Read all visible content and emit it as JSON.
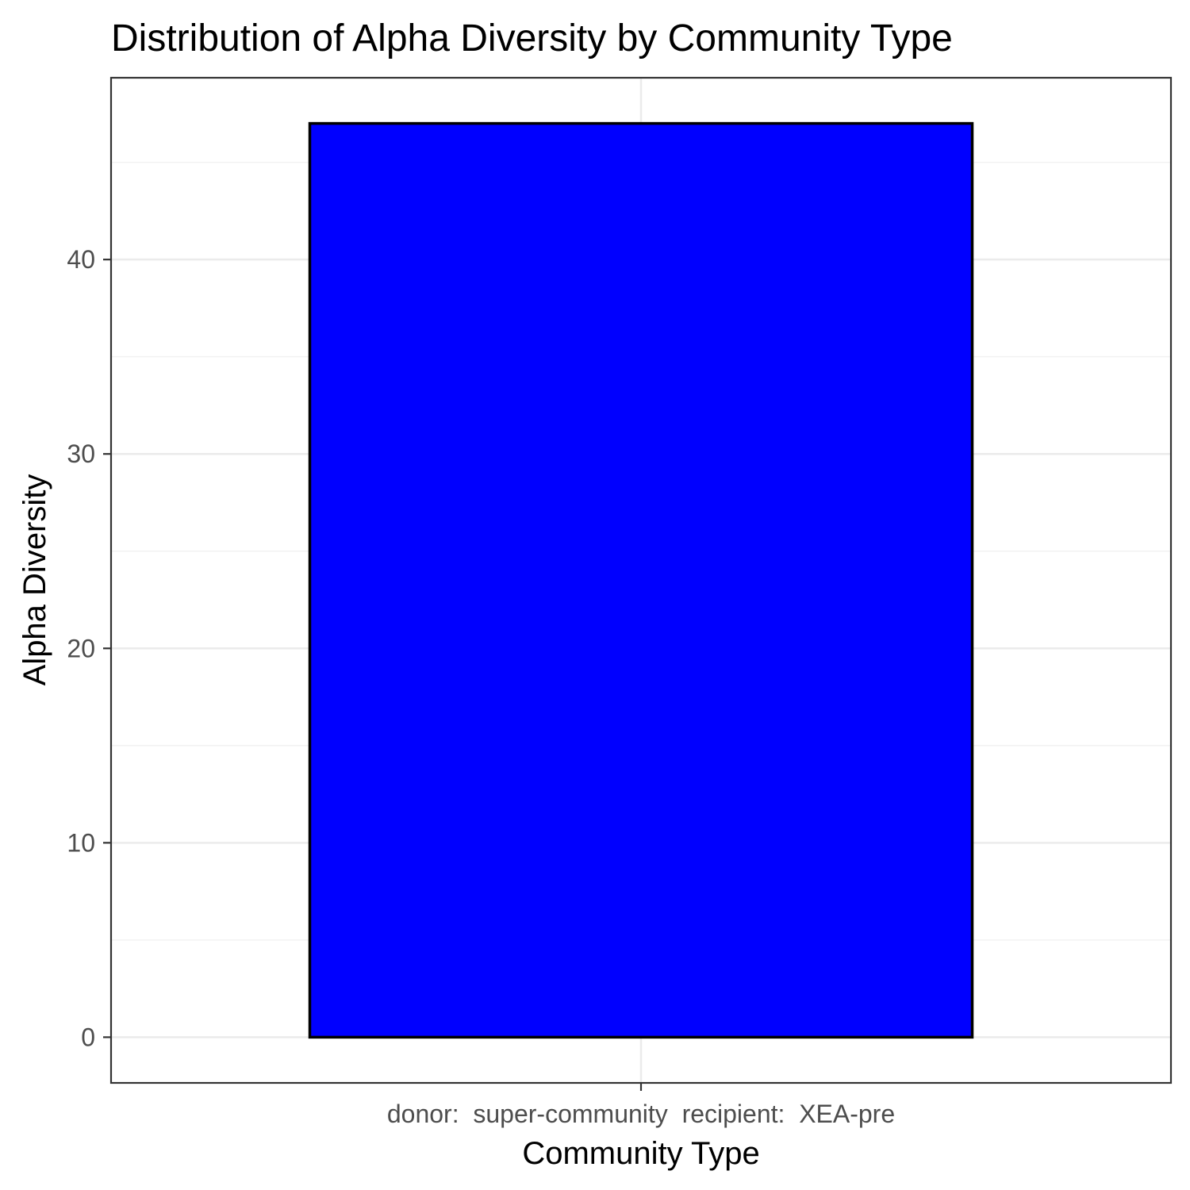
{
  "chart_data": {
    "type": "bar",
    "title": "Distribution of Alpha Diversity by Community Type",
    "xlabel": "Community Type",
    "ylabel": "Alpha Diversity",
    "categories": [
      "donor:  super-community  recipient:  XEA-pre"
    ],
    "values": [
      47
    ],
    "ylim": [
      -2.35,
      49.35
    ],
    "yticks": [
      0,
      10,
      20,
      30,
      40
    ],
    "ytick_labels": [
      "0",
      "10",
      "20",
      "30",
      "40"
    ],
    "grid": true,
    "legend": "none",
    "colors": {
      "bar_fill": "#0000ff",
      "bar_stroke": "#000000",
      "grid_major": "#ebebeb",
      "grid_minor": "#f2f2f2",
      "panel_border": "#333333",
      "tick_text": "#4d4d4d"
    }
  }
}
